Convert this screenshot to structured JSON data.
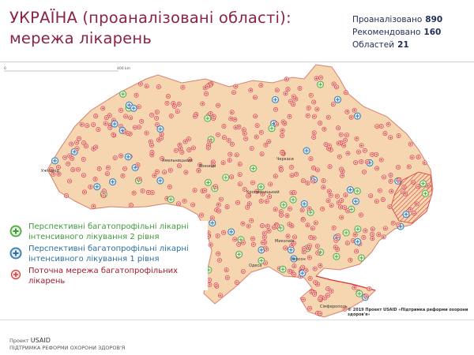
{
  "title": {
    "line1": "УКРАЇНА (проаналізовані області):",
    "line2": "мережа лікарень"
  },
  "stats": [
    {
      "label": "Проаналізовано",
      "value": "890"
    },
    {
      "label": "Рекомендовано",
      "value": "160"
    },
    {
      "label": "Областей",
      "value": "21"
    }
  ],
  "map": {
    "scale_start": "0",
    "scale_end": "400 km",
    "copyright": "© 2019 Проект USAID «Підтримка реформи охорони здоров'я»",
    "cities": [
      "Ужгород",
      "Хмельницький",
      "Вінниця",
      "Черкаси",
      "Кропивницький",
      "Миколаїв",
      "Херсон",
      "Одеса",
      "Сімферополь"
    ],
    "colors": {
      "land": "#f6d6b0",
      "border": "#d98070",
      "level2": "#5aae4c",
      "level1": "#3f83b5",
      "current": "#d9383a"
    }
  },
  "legend": [
    {
      "icon": "plus-circle-green-icon",
      "text": "Перспективні багатопрофільні лікарні інтенсивного лікування 2 рівня",
      "color": "#3e9a3a"
    },
    {
      "icon": "plus-circle-blue-icon",
      "text": "Перспективні багатопрофільні лікарні інтенсивного лікування 1 рівня",
      "color": "#2e6f9c"
    },
    {
      "icon": "plus-circle-red-icon",
      "text": "Поточна мережа багатопрофільних лікарень",
      "color": "#a01c2a"
    }
  ],
  "footer": {
    "project": "Проект",
    "usaid": "USAID",
    "program": "ПІДТРИМКА РЕФОРМИ ОХОРОНИ ЗДОРОВ'Я"
  }
}
